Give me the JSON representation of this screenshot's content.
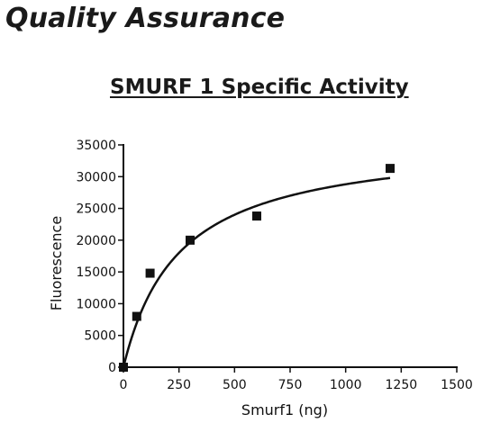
{
  "page": {
    "heading": "Quality Assurance"
  },
  "chart_data": {
    "type": "scatter",
    "title": "SMURF 1 Specific Activity",
    "xlabel": "Smurf1 (ng)",
    "ylabel": "Fluorescence",
    "xlim": [
      0,
      1500
    ],
    "ylim": [
      0,
      35000
    ],
    "xticks": [
      0,
      250,
      500,
      750,
      1000,
      1250,
      1500
    ],
    "yticks": [
      0,
      5000,
      10000,
      15000,
      20000,
      25000,
      30000,
      35000
    ],
    "grid": false,
    "legend": "none",
    "series": [
      {
        "marker": "square",
        "x": [
          0,
          60,
          120,
          300,
          600,
          1200
        ],
        "y": [
          0,
          8000,
          14800,
          20000,
          23800,
          31300
        ]
      }
    ],
    "fit_curve": {
      "model": "hyperbola",
      "vmax": 36000,
      "km": 250,
      "x_range": [
        0,
        1200
      ]
    },
    "colors": {
      "marker": "#111111",
      "line": "#111111"
    }
  }
}
